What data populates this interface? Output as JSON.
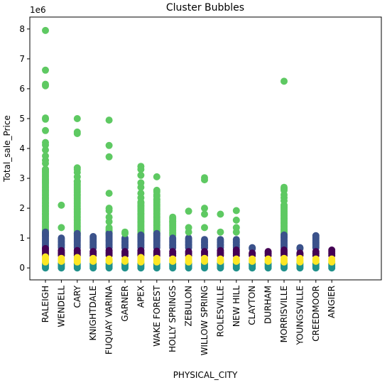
{
  "chart_data": {
    "type": "scatter",
    "title": "Cluster Bubbles",
    "xlabel": "PHYSICAL_CITY",
    "ylabel": "Total_sale_Price",
    "y_offset_label": "1e6",
    "ylim": [
      -0.4,
      8.4
    ],
    "yticks": [
      0,
      1,
      2,
      3,
      4,
      5,
      6,
      7,
      8
    ],
    "ytick_labels": [
      "0",
      "1",
      "2",
      "3",
      "4",
      "5",
      "6",
      "7",
      "8"
    ],
    "grid": false,
    "legend": "none",
    "categories": [
      "RALEIGH",
      "WENDELL",
      "CARY",
      "KNIGHTDALE",
      "FUQUAY VARINA",
      "GARNER",
      "APEX",
      "WAKE FOREST",
      "HOLLY SPRINGS",
      "ZEBULON",
      "WILLOW SPRING",
      "ROLESVILLE",
      "NEW HILL",
      "CLAYTON",
      "DURHAM",
      "MORRISVILLE",
      "YOUNGSVILLE",
      "CREEDMOOR",
      "ANGIER"
    ],
    "cluster_colors": {
      "c0": "#440154",
      "c1": "#3b528b",
      "c2": "#21918c",
      "c3": "#5ec962",
      "c4": "#fde725"
    },
    "series": [
      {
        "cluster": "c2",
        "values": [
          [
            0,
            0.15
          ],
          [
            0,
            0.15
          ],
          [
            0,
            0.15
          ],
          [
            0,
            0.15
          ],
          [
            0,
            0.15
          ],
          [
            0,
            0.15
          ],
          [
            0,
            0.15
          ],
          [
            0,
            0.15
          ],
          [
            0,
            0.15
          ],
          [
            0,
            0.15
          ],
          [
            0,
            0.15
          ],
          [
            0,
            0.15
          ],
          [
            0,
            0.15
          ],
          [
            0,
            0.15
          ],
          [
            0,
            0.15
          ],
          [
            0,
            0.15
          ],
          [
            0,
            0.15
          ],
          [
            0,
            0.15
          ],
          [
            0,
            0.15
          ]
        ]
      },
      {
        "cluster": "c4",
        "values": [
          [
            0.2,
            0.37
          ],
          [
            0.2,
            0.32
          ],
          [
            0.2,
            0.35
          ],
          [
            0.2,
            0.32
          ],
          [
            0.2,
            0.3
          ],
          [
            0.2,
            0.28
          ],
          [
            0.2,
            0.35
          ],
          [
            0.2,
            0.32
          ],
          [
            0.2,
            0.3
          ],
          [
            0.2,
            0.33
          ],
          [
            0.2,
            0.32
          ],
          [
            0.2,
            0.3
          ],
          [
            0.2,
            0.3
          ],
          [
            0.2,
            0.3
          ],
          [
            0.2,
            0.3
          ],
          [
            0.2,
            0.32
          ],
          [
            0.2,
            0.32
          ],
          [
            0.2,
            0.3
          ],
          [
            0.2,
            0.3
          ]
        ]
      },
      {
        "cluster": "c0",
        "values": [
          [
            0.4,
            0.65
          ],
          [
            0.4,
            0.58
          ],
          [
            0.4,
            0.58
          ],
          [
            0.4,
            0.55
          ],
          [
            0.4,
            0.58
          ],
          [
            0.4,
            0.55
          ],
          [
            0.4,
            0.58
          ],
          [
            0.4,
            0.56
          ],
          [
            0.4,
            0.55
          ],
          [
            0.4,
            0.55
          ],
          [
            0.4,
            0.55
          ],
          [
            0.4,
            0.58
          ],
          [
            0.4,
            0.6
          ],
          [
            0.4,
            0.5
          ],
          [
            0.4,
            0.55
          ],
          [
            0.4,
            0.6
          ],
          [
            0.4,
            0.5
          ],
          [
            0.4,
            0.55
          ],
          [
            0.4,
            0.6
          ]
        ]
      },
      {
        "cluster": "c1",
        "values": [
          [
            0.7,
            1.2
          ],
          [
            0.7,
            1.0
          ],
          [
            0.7,
            1.15
          ],
          [
            0.7,
            1.05
          ],
          [
            0.7,
            1.15
          ],
          [
            0.7,
            1.0
          ],
          [
            0.7,
            1.1
          ],
          [
            0.7,
            1.15
          ],
          [
            0.7,
            1.0
          ],
          [
            0.7,
            1.0
          ],
          [
            0.7,
            0.95
          ],
          [
            0.7,
            0.95
          ],
          [
            0.7,
            0.95
          ],
          [
            0.7,
            0.65
          ],
          [
            0.7,
            0.0
          ],
          [
            0.7,
            1.1
          ],
          [
            0.7,
            0.65
          ],
          [
            0.7,
            1.08
          ],
          [
            0.7,
            0.0
          ]
        ]
      },
      {
        "cluster": "c3",
        "values": [
          [
            1.2,
            7.95
          ],
          [
            1.35,
            2.1
          ],
          [
            1.2,
            5.0
          ],
          [
            0,
            0
          ],
          [
            1.2,
            4.95
          ],
          [
            1.2,
            1.2
          ],
          [
            1.2,
            3.4
          ],
          [
            1.2,
            3.05
          ],
          [
            1.2,
            1.7
          ],
          [
            1.35,
            1.9
          ],
          [
            1.2,
            3.02
          ],
          [
            1.2,
            1.8
          ],
          [
            1.2,
            1.92
          ],
          [
            0,
            0
          ],
          [
            0,
            0
          ],
          [
            1.2,
            6.25
          ],
          [
            0,
            0
          ],
          [
            0,
            0
          ],
          [
            0,
            0
          ]
        ]
      }
    ],
    "points": {
      "c3": [
        [
          0,
          7.95
        ],
        [
          0,
          6.62
        ],
        [
          0,
          6.15
        ],
        [
          0,
          6.1
        ],
        [
          0,
          5.02
        ],
        [
          0,
          4.98
        ],
        [
          0,
          4.6
        ],
        [
          0,
          4.2
        ],
        [
          0,
          4.12
        ],
        [
          0,
          3.95
        ],
        [
          0,
          3.75
        ],
        [
          0,
          3.6
        ],
        [
          0,
          3.5
        ],
        [
          0,
          3.3
        ],
        [
          1,
          2.1
        ],
        [
          1,
          1.35
        ],
        [
          2,
          5.0
        ],
        [
          2,
          4.55
        ],
        [
          2,
          4.5
        ],
        [
          2,
          3.35
        ],
        [
          2,
          3.3
        ],
        [
          2,
          3.2
        ],
        [
          2,
          3.05
        ],
        [
          2,
          2.9
        ],
        [
          4,
          4.95
        ],
        [
          4,
          4.1
        ],
        [
          4,
          3.72
        ],
        [
          4,
          2.5
        ],
        [
          4,
          2.0
        ],
        [
          4,
          1.92
        ],
        [
          4,
          1.7
        ],
        [
          4,
          1.55
        ],
        [
          4,
          1.35
        ],
        [
          5,
          1.2
        ],
        [
          5,
          1.15
        ],
        [
          6,
          3.4
        ],
        [
          6,
          3.3
        ],
        [
          6,
          3.1
        ],
        [
          6,
          2.85
        ],
        [
          6,
          2.7
        ],
        [
          6,
          2.5
        ],
        [
          6,
          2.35
        ],
        [
          6,
          2.2
        ],
        [
          7,
          3.05
        ],
        [
          7,
          2.6
        ],
        [
          7,
          2.55
        ],
        [
          7,
          2.45
        ],
        [
          7,
          2.4
        ],
        [
          7,
          2.3
        ],
        [
          8,
          1.7
        ],
        [
          8,
          1.65
        ],
        [
          8,
          1.6
        ],
        [
          8,
          1.55
        ],
        [
          9,
          1.9
        ],
        [
          9,
          1.35
        ],
        [
          9,
          1.2
        ],
        [
          10,
          3.02
        ],
        [
          10,
          2.95
        ],
        [
          10,
          2.0
        ],
        [
          10,
          1.8
        ],
        [
          10,
          1.35
        ],
        [
          11,
          1.8
        ],
        [
          11,
          1.2
        ],
        [
          12,
          1.92
        ],
        [
          12,
          1.6
        ],
        [
          12,
          1.35
        ],
        [
          12,
          1.2
        ],
        [
          15,
          6.25
        ],
        [
          15,
          2.7
        ],
        [
          15,
          2.65
        ],
        [
          15,
          2.6
        ],
        [
          15,
          2.45
        ],
        [
          15,
          2.35
        ],
        [
          15,
          2.25
        ],
        [
          15,
          2.1
        ]
      ],
      "c3_dense": [
        [
          0,
          1.1,
          3.3
        ],
        [
          2,
          1.1,
          2.9
        ],
        [
          4,
          1.1,
          1.3
        ],
        [
          6,
          1.1,
          2.2
        ],
        [
          7,
          1.1,
          2.3
        ],
        [
          8,
          1.1,
          1.55
        ],
        [
          15,
          1.1,
          2.1
        ]
      ],
      "c1_dense": [
        [
          0,
          0.68,
          1.2
        ],
        [
          1,
          0.68,
          1.0
        ],
        [
          2,
          0.68,
          1.15
        ],
        [
          3,
          0.68,
          1.05
        ],
        [
          4,
          0.68,
          1.15
        ],
        [
          5,
          0.68,
          1.0
        ],
        [
          6,
          0.68,
          1.1
        ],
        [
          7,
          0.68,
          1.15
        ],
        [
          8,
          0.68,
          1.0
        ],
        [
          9,
          0.68,
          1.0
        ],
        [
          10,
          0.68,
          0.95
        ],
        [
          11,
          0.68,
          0.95
        ],
        [
          12,
          0.68,
          0.95
        ],
        [
          13,
          0.68,
          0.65
        ],
        [
          15,
          0.68,
          1.1
        ],
        [
          16,
          0.68,
          0.65
        ],
        [
          17,
          0.68,
          1.08
        ]
      ],
      "c0_dense": [
        [
          0,
          0.42,
          0.65
        ],
        [
          1,
          0.42,
          0.58
        ],
        [
          2,
          0.42,
          0.58
        ],
        [
          3,
          0.42,
          0.55
        ],
        [
          4,
          0.42,
          0.58
        ],
        [
          5,
          0.42,
          0.55
        ],
        [
          6,
          0.42,
          0.58
        ],
        [
          7,
          0.42,
          0.56
        ],
        [
          8,
          0.42,
          0.55
        ],
        [
          9,
          0.42,
          0.55
        ],
        [
          10,
          0.42,
          0.55
        ],
        [
          11,
          0.42,
          0.58
        ],
        [
          12,
          0.42,
          0.6
        ],
        [
          13,
          0.42,
          0.5
        ],
        [
          14,
          0.42,
          0.55
        ],
        [
          15,
          0.42,
          0.6
        ],
        [
          16,
          0.42,
          0.5
        ],
        [
          17,
          0.42,
          0.55
        ],
        [
          18,
          0.42,
          0.6
        ]
      ],
      "c4_dense": [
        [
          0,
          0.2,
          0.37
        ],
        [
          1,
          0.22,
          0.32
        ],
        [
          2,
          0.2,
          0.35
        ],
        [
          3,
          0.22,
          0.32
        ],
        [
          4,
          0.22,
          0.3
        ],
        [
          5,
          0.22,
          0.28
        ],
        [
          6,
          0.2,
          0.35
        ],
        [
          7,
          0.2,
          0.32
        ],
        [
          8,
          0.22,
          0.3
        ],
        [
          9,
          0.2,
          0.33
        ],
        [
          10,
          0.22,
          0.32
        ],
        [
          11,
          0.22,
          0.3
        ],
        [
          12,
          0.22,
          0.3
        ],
        [
          13,
          0.22,
          0.3
        ],
        [
          14,
          0.22,
          0.3
        ],
        [
          15,
          0.2,
          0.32
        ],
        [
          16,
          0.2,
          0.32
        ],
        [
          17,
          0.22,
          0.3
        ],
        [
          18,
          0.2,
          0.3
        ]
      ],
      "c2_dense": [
        [
          0,
          0.0,
          0.15
        ],
        [
          1,
          0.0,
          0.15
        ],
        [
          2,
          0.0,
          0.15
        ],
        [
          3,
          0.0,
          0.15
        ],
        [
          4,
          0.0,
          0.15
        ],
        [
          5,
          0.0,
          0.15
        ],
        [
          6,
          0.0,
          0.15
        ],
        [
          7,
          0.0,
          0.15
        ],
        [
          8,
          0.0,
          0.15
        ],
        [
          9,
          0.0,
          0.15
        ],
        [
          10,
          0.0,
          0.15
        ],
        [
          11,
          0.0,
          0.15
        ],
        [
          12,
          0.0,
          0.15
        ],
        [
          13,
          0.0,
          0.15
        ],
        [
          14,
          0.0,
          0.15
        ],
        [
          15,
          0.0,
          0.15
        ],
        [
          16,
          0.0,
          0.15
        ],
        [
          17,
          0.0,
          0.15
        ],
        [
          18,
          0.0,
          0.15
        ]
      ]
    }
  }
}
